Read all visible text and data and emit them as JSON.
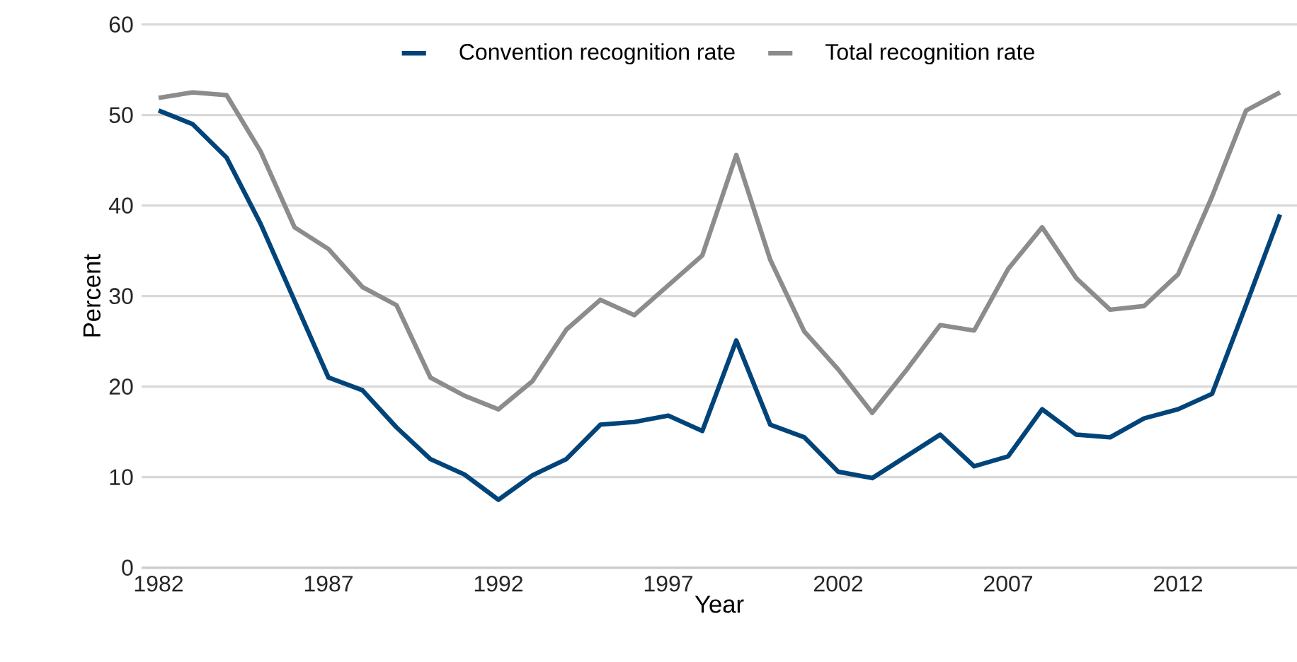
{
  "chart_data": {
    "type": "line",
    "xlabel": "Year",
    "ylabel": "Percent",
    "x": [
      1982,
      1983,
      1984,
      1985,
      1986,
      1987,
      1988,
      1989,
      1990,
      1991,
      1992,
      1993,
      1994,
      1995,
      1996,
      1997,
      1998,
      1999,
      2000,
      2001,
      2002,
      2003,
      2004,
      2005,
      2006,
      2007,
      2008,
      2009,
      2010,
      2011,
      2012,
      2013,
      2014,
      2015
    ],
    "series": [
      {
        "name": "Convention recognition rate",
        "color": "#004479",
        "values": [
          50.5,
          49,
          45.3,
          38,
          29.5,
          21,
          19.6,
          15.5,
          12,
          10.3,
          7.5,
          10.2,
          12,
          15.8,
          16.1,
          16.8,
          15.1,
          25.1,
          15.8,
          14.4,
          10.6,
          9.9,
          12.3,
          14.7,
          11.2,
          12.3,
          17.5,
          14.7,
          14.4,
          16.5,
          17.5,
          19.2,
          29,
          39
        ]
      },
      {
        "name": "Total recognition rate",
        "color": "#8c8c8c",
        "values": [
          51.9,
          52.5,
          52.2,
          46,
          37.6,
          35.2,
          31,
          29,
          21,
          19,
          17.5,
          20.6,
          26.3,
          29.6,
          27.9,
          31.2,
          34.5,
          45.6,
          34,
          26.1,
          21.9,
          17.1,
          21.8,
          26.8,
          26.2,
          33,
          37.6,
          32,
          28.5,
          28.9,
          32.4,
          41,
          50.5,
          52.5
        ]
      }
    ],
    "xlim": [
      1981.5,
      2015.5
    ],
    "xticks": [
      1982,
      1987,
      1992,
      1997,
      2002,
      2007,
      2012
    ],
    "ylim": [
      0,
      60
    ],
    "yticks": [
      0,
      10,
      20,
      30,
      40,
      50,
      60
    ],
    "grid": "y",
    "legend": "top",
    "marker": "none",
    "line_style": "solid"
  }
}
